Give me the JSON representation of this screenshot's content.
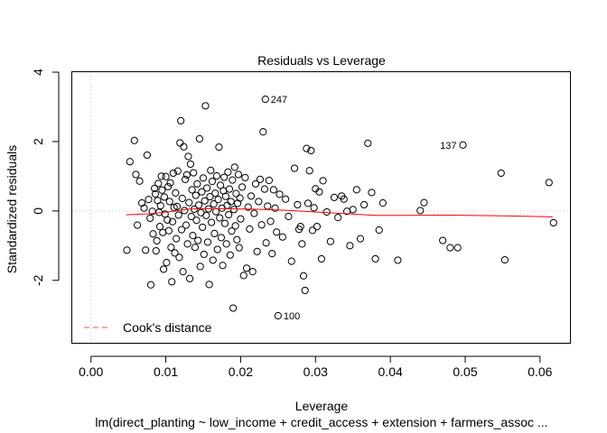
{
  "chart_data": {
    "type": "scatter",
    "title": "Residuals vs Leverage",
    "xlabel": "Leverage",
    "ylabel": "Standardized residuals",
    "subtitle": "lm(direct_planting ~ low_income + credit_access + extension + farmers_assoc ...",
    "xlim": [
      -0.0025,
      0.064
    ],
    "ylim": [
      -3.8,
      4.0
    ],
    "xticks": [
      0.0,
      0.01,
      0.02,
      0.03,
      0.04,
      0.05,
      0.06
    ],
    "xtick_labels": [
      "0.00",
      "0.01",
      "0.02",
      "0.03",
      "0.04",
      "0.05",
      "0.06"
    ],
    "yticks": [
      -2,
      0,
      2,
      4
    ],
    "ytick_labels": [
      "-2",
      "0",
      "2",
      "4"
    ],
    "grid": false,
    "legend": {
      "position": "bottom-left",
      "entries": [
        "Cook's distance"
      ],
      "color": "#FF6F6F"
    },
    "smooth_color": "#FF0000",
    "reference_lines": {
      "x": 0,
      "y": 0,
      "color": "#C8C8C8"
    },
    "labeled_points": [
      {
        "label": "247",
        "x": 0.0233,
        "y": 3.22
      },
      {
        "label": "137",
        "x": 0.0497,
        "y": 1.9
      },
      {
        "label": "100",
        "x": 0.025,
        "y": -3.02
      }
    ],
    "smooth": [
      [
        0.0047,
        -0.11
      ],
      [
        0.008,
        -0.08
      ],
      [
        0.011,
        -0.01
      ],
      [
        0.013,
        0.05
      ],
      [
        0.015,
        0.07
      ],
      [
        0.018,
        0.06
      ],
      [
        0.022,
        0.05
      ],
      [
        0.026,
        0.02
      ],
      [
        0.03,
        -0.03
      ],
      [
        0.034,
        -0.08
      ],
      [
        0.038,
        -0.13
      ],
      [
        0.042,
        -0.13
      ],
      [
        0.048,
        -0.12
      ],
      [
        0.055,
        -0.14
      ],
      [
        0.0617,
        -0.17
      ]
    ],
    "points": [
      [
        0.0048,
        -1.13
      ],
      [
        0.0052,
        1.42
      ],
      [
        0.0058,
        2.03
      ],
      [
        0.006,
        1.05
      ],
      [
        0.0062,
        -0.41
      ],
      [
        0.0065,
        0.86
      ],
      [
        0.0068,
        0.23
      ],
      [
        0.0071,
        0.08
      ],
      [
        0.0073,
        -1.13
      ],
      [
        0.0075,
        1.61
      ],
      [
        0.0077,
        0.33
      ],
      [
        0.0079,
        -0.21
      ],
      [
        0.008,
        -2.13
      ],
      [
        0.0082,
        -0.01
      ],
      [
        0.0083,
        -0.66
      ],
      [
        0.0085,
        0.65
      ],
      [
        0.0086,
        0.49
      ],
      [
        0.0087,
        -1.15
      ],
      [
        0.0088,
        -0.86
      ],
      [
        0.0089,
        0.3
      ],
      [
        0.009,
        0.79
      ],
      [
        0.0091,
        -0.04
      ],
      [
        0.0092,
        -0.45
      ],
      [
        0.0093,
        0.15
      ],
      [
        0.0094,
        1.0
      ],
      [
        0.0095,
        0.6
      ],
      [
        0.0096,
        -0.62
      ],
      [
        0.0097,
        -1.68
      ],
      [
        0.0098,
        0.4
      ],
      [
        0.0099,
        -0.09
      ],
      [
        0.01,
        0.99
      ],
      [
        0.0101,
        -1.49
      ],
      [
        0.0102,
        -0.26
      ],
      [
        0.0103,
        0.7
      ],
      [
        0.0104,
        -0.57
      ],
      [
        0.0105,
        0.27
      ],
      [
        0.0106,
        0.81
      ],
      [
        0.0107,
        -1.05
      ],
      [
        0.0108,
        -2.04
      ],
      [
        0.0109,
        -0.31
      ],
      [
        0.011,
        1.09
      ],
      [
        0.0111,
        0.1
      ],
      [
        0.0112,
        -1.21
      ],
      [
        0.0113,
        0.52
      ],
      [
        0.0114,
        -0.8
      ],
      [
        0.0115,
        0.13
      ],
      [
        0.0116,
        1.15
      ],
      [
        0.0117,
        -0.12
      ],
      [
        0.0118,
        -1.34
      ],
      [
        0.0119,
        1.96
      ],
      [
        0.012,
        2.6
      ],
      [
        0.0121,
        -0.54
      ],
      [
        0.0122,
        0.36
      ],
      [
        0.0123,
        -1.75
      ],
      [
        0.0124,
        1.85
      ],
      [
        0.0125,
        0.01
      ],
      [
        0.0126,
        0.91
      ],
      [
        0.0127,
        -0.41
      ],
      [
        0.0128,
        1.04
      ],
      [
        0.0129,
        -0.95
      ],
      [
        0.013,
        1.57
      ],
      [
        0.0131,
        0.24
      ],
      [
        0.0132,
        -1.95
      ],
      [
        0.0133,
        1.35
      ],
      [
        0.0134,
        -0.16
      ],
      [
        0.0135,
        0.61
      ],
      [
        0.0136,
        -0.71
      ],
      [
        0.0137,
        1.1
      ],
      [
        0.0138,
        0.05
      ],
      [
        0.0139,
        -1.05
      ],
      [
        0.014,
        0.45
      ],
      [
        0.0141,
        -0.27
      ],
      [
        0.0142,
        0.78
      ],
      [
        0.0143,
        -0.85
      ],
      [
        0.0144,
        0.17
      ],
      [
        0.0145,
        2.08
      ],
      [
        0.0146,
        -1.6
      ],
      [
        0.0147,
        -0.05
      ],
      [
        0.0148,
        0.55
      ],
      [
        0.0149,
        -0.47
      ],
      [
        0.015,
        0.95
      ],
      [
        0.0151,
        -1.25
      ],
      [
        0.0152,
        0.29
      ],
      [
        0.0153,
        3.03
      ],
      [
        0.0154,
        -0.13
      ],
      [
        0.0155,
        0.66
      ],
      [
        0.0156,
        -0.9
      ],
      [
        0.0157,
        0.06
      ],
      [
        0.0158,
        -2.12
      ],
      [
        0.0159,
        0.41
      ],
      [
        0.016,
        1.17
      ],
      [
        0.0161,
        -0.33
      ],
      [
        0.0162,
        0.85
      ],
      [
        0.0163,
        -1.42
      ],
      [
        0.0164,
        0.2
      ],
      [
        0.0165,
        -0.65
      ],
      [
        0.0166,
        0.51
      ],
      [
        0.0167,
        -0.02
      ],
      [
        0.0168,
        1.01
      ],
      [
        0.0169,
        -1.11
      ],
      [
        0.017,
        0.33
      ],
      [
        0.0171,
        1.84
      ],
      [
        0.0172,
        -0.2
      ],
      [
        0.0173,
        0.74
      ],
      [
        0.0174,
        -0.77
      ],
      [
        0.0175,
        0.08
      ],
      [
        0.0176,
        -1.57
      ],
      [
        0.0177,
        0.58
      ],
      [
        0.0178,
        0.97
      ],
      [
        0.0179,
        -0.36
      ],
      [
        0.018,
        0.42
      ],
      [
        0.0181,
        -0.95
      ],
      [
        0.0182,
        0.16
      ],
      [
        0.0183,
        1.12
      ],
      [
        0.0184,
        -0.11
      ],
      [
        0.0185,
        0.63
      ],
      [
        0.0186,
        -1.27
      ],
      [
        0.0187,
        0.27
      ],
      [
        0.0188,
        -0.58
      ],
      [
        0.0189,
        0.89
      ],
      [
        0.019,
        -2.8
      ],
      [
        0.0191,
        0.04
      ],
      [
        0.0192,
        1.26
      ],
      [
        0.0193,
        -0.43
      ],
      [
        0.0194,
        0.5
      ],
      [
        0.0195,
        -0.83
      ],
      [
        0.0196,
        0.22
      ],
      [
        0.0197,
        1.05
      ],
      [
        0.0198,
        -1.06
      ],
      [
        0.0199,
        0.37
      ],
      [
        0.02,
        -0.23
      ],
      [
        0.0202,
        0.69
      ],
      [
        0.0204,
        -1.86
      ],
      [
        0.0206,
        0.96
      ],
      [
        0.0208,
        -1.65
      ],
      [
        0.021,
        0.11
      ],
      [
        0.0212,
        -0.52
      ],
      [
        0.0214,
        0.43
      ],
      [
        0.0216,
        -1.75
      ],
      [
        0.0218,
        -0.07
      ],
      [
        0.022,
        0.78
      ],
      [
        0.0222,
        -1.17
      ],
      [
        0.0224,
        0.27
      ],
      [
        0.0226,
        0.91
      ],
      [
        0.0228,
        -0.4
      ],
      [
        0.023,
        2.28
      ],
      [
        0.0232,
        0.63
      ],
      [
        0.0234,
        -0.92
      ],
      [
        0.0236,
        0.14
      ],
      [
        0.0238,
        0.88
      ],
      [
        0.024,
        -0.3
      ],
      [
        0.0242,
        -1.23
      ],
      [
        0.0244,
        0.61
      ],
      [
        0.0246,
        0.08
      ],
      [
        0.0248,
        -0.61
      ],
      [
        0.0252,
        0.48
      ],
      [
        0.0256,
        -0.75
      ],
      [
        0.026,
        0.34
      ],
      [
        0.0264,
        -0.16
      ],
      [
        0.0268,
        -1.45
      ],
      [
        0.0272,
        1.23
      ],
      [
        0.0276,
        0.18
      ],
      [
        0.0278,
        -0.53
      ],
      [
        0.028,
        -0.45
      ],
      [
        0.0282,
        -0.95
      ],
      [
        0.0284,
        -1.87
      ],
      [
        0.0286,
        -2.29
      ],
      [
        0.0288,
        1.8
      ],
      [
        0.029,
        0.22
      ],
      [
        0.0292,
        1.16
      ],
      [
        0.0294,
        1.74
      ],
      [
        0.0296,
        -0.56
      ],
      [
        0.0298,
        0.09
      ],
      [
        0.03,
        0.64
      ],
      [
        0.0302,
        -0.45
      ],
      [
        0.0305,
        0.55
      ],
      [
        0.0308,
        -1.38
      ],
      [
        0.031,
        0.87
      ],
      [
        0.0315,
        -0.03
      ],
      [
        0.032,
        -0.88
      ],
      [
        0.0325,
        0.39
      ],
      [
        0.033,
        -0.19
      ],
      [
        0.0335,
        0.43
      ],
      [
        0.0338,
        0.34
      ],
      [
        0.0342,
        -0.01
      ],
      [
        0.0346,
        -1.0
      ],
      [
        0.035,
        0.04
      ],
      [
        0.0355,
        0.61
      ],
      [
        0.036,
        -0.8
      ],
      [
        0.0365,
        0.18
      ],
      [
        0.037,
        1.95
      ],
      [
        0.0375,
        0.53
      ],
      [
        0.038,
        -1.38
      ],
      [
        0.0385,
        -0.55
      ],
      [
        0.039,
        0.23
      ],
      [
        0.041,
        -1.42
      ],
      [
        0.044,
        0.01
      ],
      [
        0.0445,
        0.24
      ],
      [
        0.047,
        -0.85
      ],
      [
        0.048,
        -1.06
      ],
      [
        0.049,
        -1.06
      ],
      [
        0.0548,
        1.09
      ],
      [
        0.0553,
        -1.41
      ],
      [
        0.0612,
        0.82
      ],
      [
        0.0618,
        -0.34
      ]
    ]
  }
}
